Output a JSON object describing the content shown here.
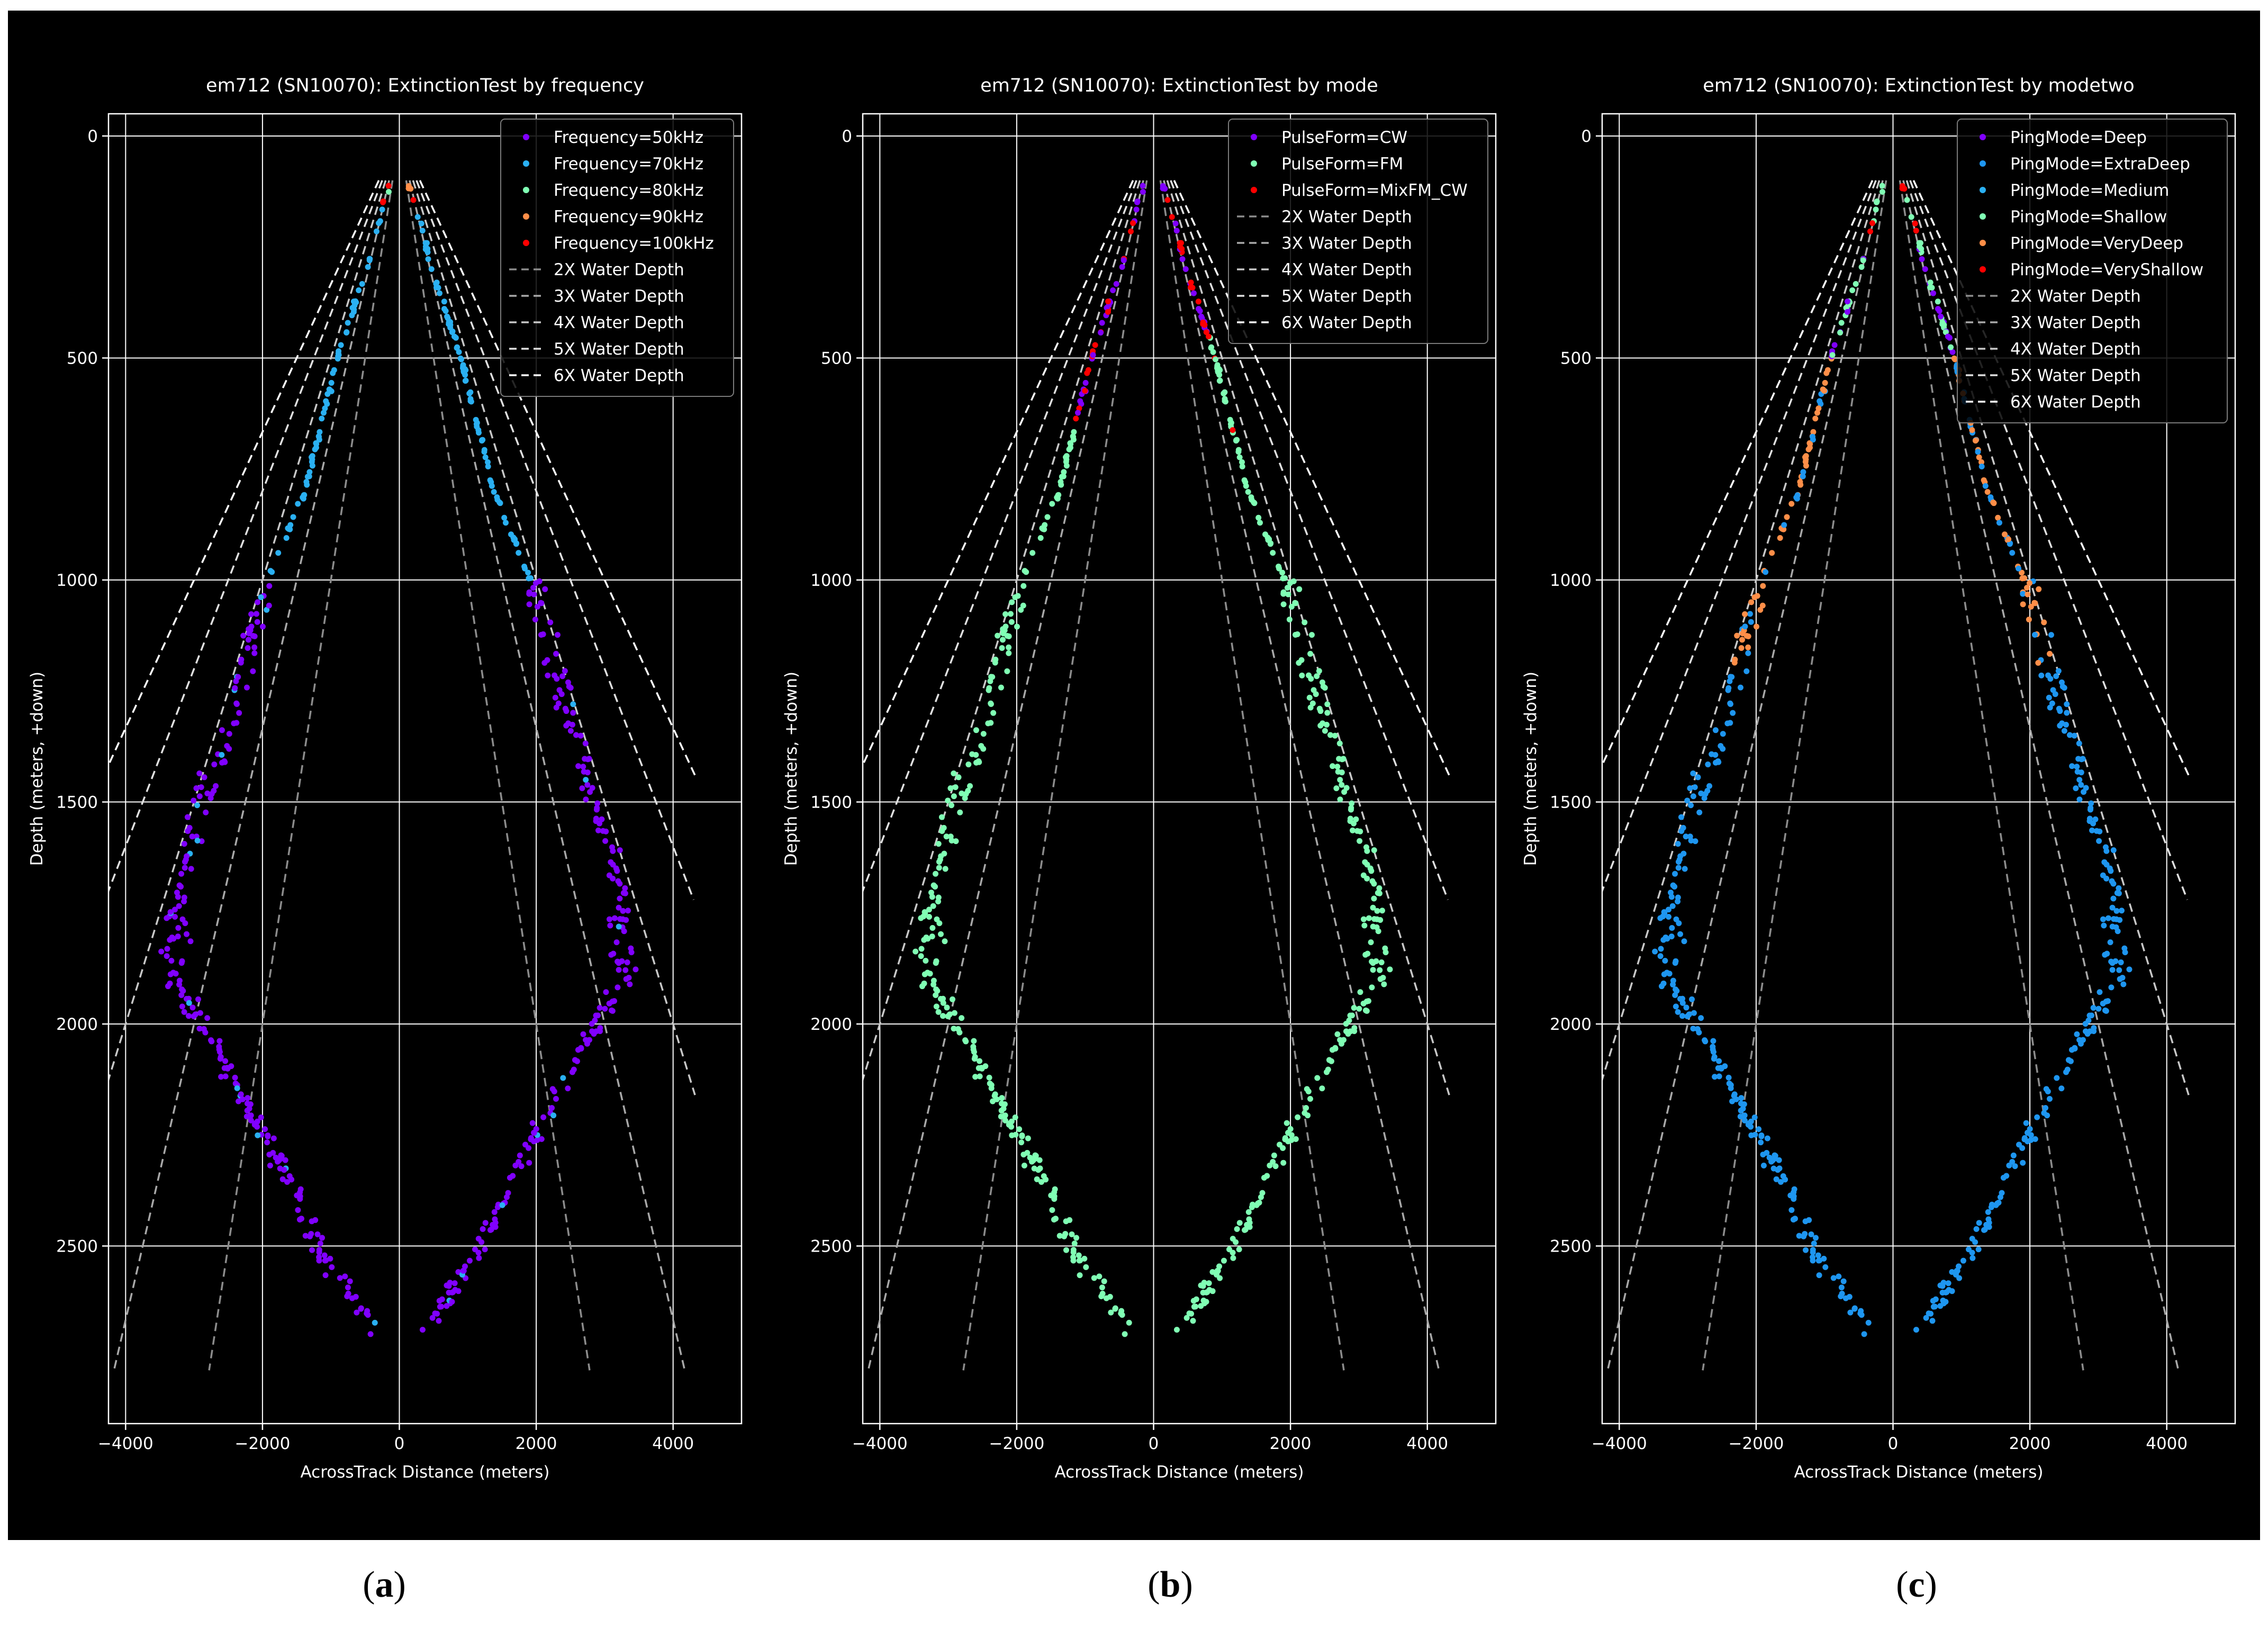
{
  "colors": {
    "background": "#000000",
    "grid": "#ffffff",
    "axis_text": "#ffffff",
    "purple": "#8000ff",
    "cyan": "#2ab0f2",
    "mint": "#80ffb4",
    "orange": "#ff8e48",
    "red": "#ff0000",
    "blue": "#1e96f0",
    "line_2x": "#8c8c8c",
    "line_3x": "#a8a8a8",
    "line_4x": "#c8c8c8",
    "line_5x": "#e0e0e0",
    "line_6x": "#ffffff"
  },
  "panel_labels": [
    "a",
    "b",
    "c"
  ],
  "chart_data": [
    {
      "type": "scatter",
      "title": "em712 (SN10070): ExtinctionTest by frequency",
      "xlabel": "AcrossTrack Distance (meters)",
      "ylabel": "Depth (meters, +down)",
      "xlim": [
        -4250,
        5000
      ],
      "ylim": [
        2900,
        -50
      ],
      "xticks": [
        -4000,
        -2000,
        0,
        2000,
        4000
      ],
      "yticks": [
        0,
        500,
        1000,
        1500,
        2000,
        2500
      ],
      "grid": true,
      "legend": "top-right",
      "legend_entries": [
        {
          "label": "Frequency=50kHz",
          "kind": "point",
          "color": "purple"
        },
        {
          "label": "Frequency=70kHz",
          "kind": "point",
          "color": "cyan"
        },
        {
          "label": "Frequency=80kHz",
          "kind": "point",
          "color": "mint"
        },
        {
          "label": "Frequency=90kHz",
          "kind": "point",
          "color": "orange"
        },
        {
          "label": "Frequency=100kHz",
          "kind": "point",
          "color": "red"
        },
        {
          "label": "2X Water Depth",
          "kind": "line",
          "color": "line_2x"
        },
        {
          "label": "3X Water Depth",
          "kind": "line",
          "color": "line_3x"
        },
        {
          "label": "4X Water Depth",
          "kind": "line",
          "color": "line_4x"
        },
        {
          "label": "5X Water Depth",
          "kind": "line",
          "color": "line_5x"
        },
        {
          "label": "6X Water Depth",
          "kind": "line",
          "color": "line_6x"
        }
      ],
      "scheme": "frequency"
    },
    {
      "type": "scatter",
      "title": "em712 (SN10070): ExtinctionTest by mode",
      "xlabel": "AcrossTrack Distance (meters)",
      "ylabel": "Depth (meters, +down)",
      "xlim": [
        -4250,
        5000
      ],
      "ylim": [
        2900,
        -50
      ],
      "xticks": [
        -4000,
        -2000,
        0,
        2000,
        4000
      ],
      "yticks": [
        0,
        500,
        1000,
        1500,
        2000,
        2500
      ],
      "grid": true,
      "legend": "top-right",
      "legend_entries": [
        {
          "label": "PulseForm=CW",
          "kind": "point",
          "color": "purple"
        },
        {
          "label": "PulseForm=FM",
          "kind": "point",
          "color": "mint"
        },
        {
          "label": "PulseForm=MixFM_CW",
          "kind": "point",
          "color": "red"
        },
        {
          "label": "2X Water Depth",
          "kind": "line",
          "color": "line_2x"
        },
        {
          "label": "3X Water Depth",
          "kind": "line",
          "color": "line_3x"
        },
        {
          "label": "4X Water Depth",
          "kind": "line",
          "color": "line_4x"
        },
        {
          "label": "5X Water Depth",
          "kind": "line",
          "color": "line_5x"
        },
        {
          "label": "6X Water Depth",
          "kind": "line",
          "color": "line_6x"
        }
      ],
      "scheme": "mode"
    },
    {
      "type": "scatter",
      "title": "em712 (SN10070): ExtinctionTest by modetwo",
      "xlabel": "AcrossTrack Distance (meters)",
      "ylabel": "Depth (meters, +down)",
      "xlim": [
        -4250,
        5000
      ],
      "ylim": [
        2900,
        -50
      ],
      "xticks": [
        -4000,
        -2000,
        0,
        2000,
        4000
      ],
      "yticks": [
        0,
        500,
        1000,
        1500,
        2000,
        2500
      ],
      "grid": true,
      "legend": "top-right",
      "legend_entries": [
        {
          "label": "PingMode=Deep",
          "kind": "point",
          "color": "purple"
        },
        {
          "label": "PingMode=ExtraDeep",
          "kind": "point",
          "color": "blue"
        },
        {
          "label": "PingMode=Medium",
          "kind": "point",
          "color": "cyan"
        },
        {
          "label": "PingMode=Shallow",
          "kind": "point",
          "color": "mint"
        },
        {
          "label": "PingMode=VeryDeep",
          "kind": "point",
          "color": "orange"
        },
        {
          "label": "PingMode=VeryShallow",
          "kind": "point",
          "color": "red"
        },
        {
          "label": "2X Water Depth",
          "kind": "line",
          "color": "line_2x"
        },
        {
          "label": "3X Water Depth",
          "kind": "line",
          "color": "line_3x"
        },
        {
          "label": "4X Water Depth",
          "kind": "line",
          "color": "line_4x"
        },
        {
          "label": "5X Water Depth",
          "kind": "line",
          "color": "line_5x"
        },
        {
          "label": "6X Water Depth",
          "kind": "line",
          "color": "line_6x"
        }
      ],
      "scheme": "modetwo"
    }
  ],
  "water_depth_lines": [
    {
      "label": "2X Water Depth",
      "multiple": 2,
      "depth_range": [
        100,
        2780
      ]
    },
    {
      "label": "3X Water Depth",
      "multiple": 3,
      "depth_range": [
        100,
        2780
      ]
    },
    {
      "label": "4X Water Depth",
      "multiple": 4,
      "depth_range": [
        100,
        2160
      ]
    },
    {
      "label": "5X Water Depth",
      "multiple": 5,
      "depth_range": [
        100,
        1720
      ]
    },
    {
      "label": "6X Water Depth",
      "multiple": 6,
      "depth_range": [
        100,
        1450
      ]
    }
  ],
  "swath_envelope": [
    {
      "depth": 100,
      "half_width": 130
    },
    {
      "depth": 300,
      "half_width": 480
    },
    {
      "depth": 500,
      "half_width": 900
    },
    {
      "depth": 800,
      "half_width": 1380
    },
    {
      "depth": 1000,
      "half_width": 1920
    },
    {
      "depth": 1300,
      "half_width": 2450
    },
    {
      "depth": 1500,
      "half_width": 2900
    },
    {
      "depth": 1700,
      "half_width": 3200
    },
    {
      "depth": 1900,
      "half_width": 3300
    },
    {
      "depth": 2050,
      "half_width": 2700
    },
    {
      "depth": 2300,
      "half_width": 1800
    },
    {
      "depth": 2500,
      "half_width": 1200
    },
    {
      "depth": 2700,
      "half_width": 300
    }
  ]
}
